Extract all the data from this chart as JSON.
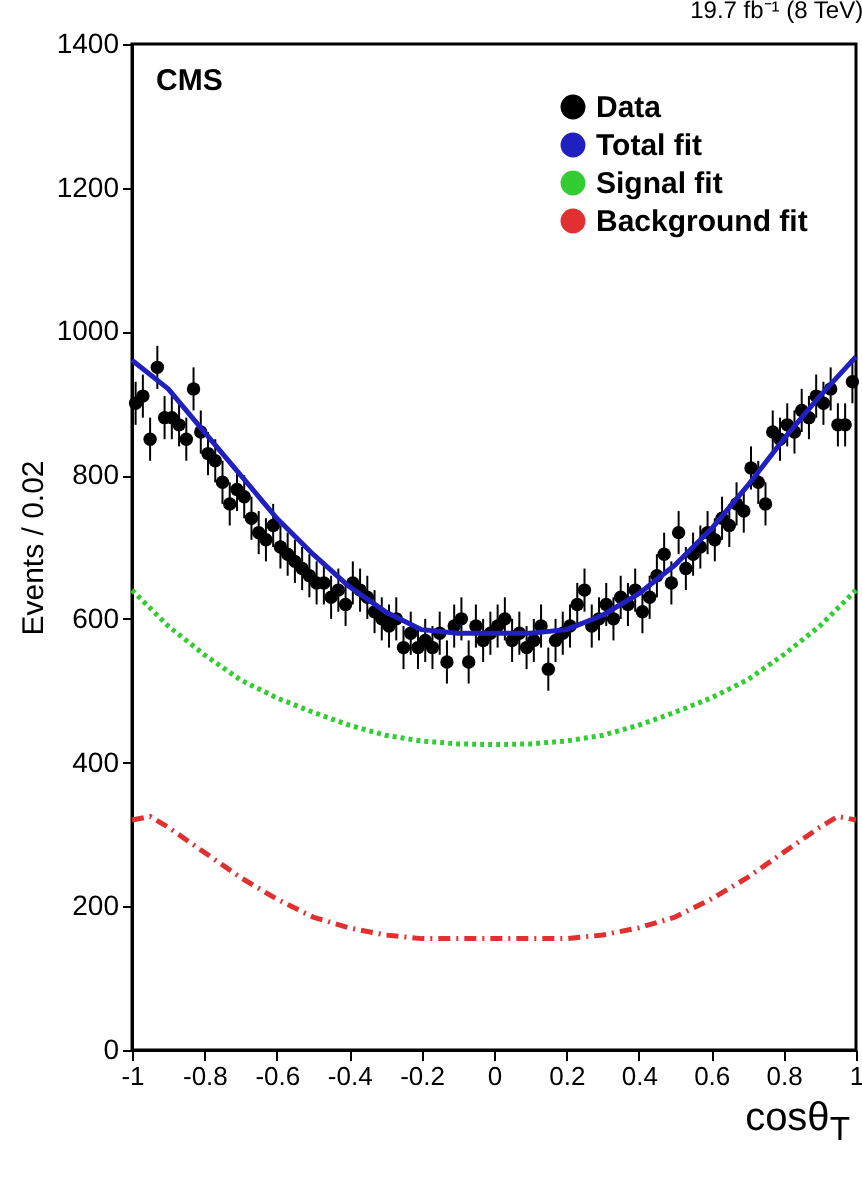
{
  "chart_data": {
    "type": "scatter",
    "title": "19.7 fb⁻¹ (8 TeV)",
    "xlabel": "cosθ$_{T}$",
    "ylabel": "Events / 0.02",
    "annotations": [
      "CMS"
    ],
    "xlim": [
      -1,
      1
    ],
    "xticks": [
      -1,
      -0.8,
      -0.6,
      -0.4,
      -0.2,
      0,
      0.2,
      0.4,
      0.6,
      0.8,
      1
    ],
    "ylim": [
      0,
      1400
    ],
    "yticks": [
      0,
      200,
      400,
      600,
      800,
      1000,
      1200,
      1400
    ],
    "legend": "top right",
    "series": [
      {
        "name": "Data",
        "marker": "circle",
        "color": "#000000",
        "x": [
          -0.99,
          -0.97,
          -0.95,
          -0.93,
          -0.91,
          -0.89,
          -0.87,
          -0.85,
          -0.83,
          -0.81,
          -0.79,
          -0.77,
          -0.75,
          -0.73,
          -0.71,
          -0.69,
          -0.67,
          -0.65,
          -0.63,
          -0.61,
          -0.59,
          -0.57,
          -0.55,
          -0.53,
          -0.51,
          -0.49,
          -0.47,
          -0.45,
          -0.43,
          -0.41,
          -0.39,
          -0.37,
          -0.35,
          -0.33,
          -0.31,
          -0.29,
          -0.27,
          -0.25,
          -0.23,
          -0.21,
          -0.19,
          -0.17,
          -0.15,
          -0.13,
          -0.11,
          -0.09,
          -0.07,
          -0.05,
          -0.03,
          -0.01,
          0.01,
          0.03,
          0.05,
          0.07,
          0.09,
          0.11,
          0.13,
          0.15,
          0.17,
          0.19,
          0.21,
          0.23,
          0.25,
          0.27,
          0.29,
          0.31,
          0.33,
          0.35,
          0.37,
          0.39,
          0.41,
          0.43,
          0.45,
          0.47,
          0.49,
          0.51,
          0.53,
          0.55,
          0.57,
          0.59,
          0.61,
          0.63,
          0.65,
          0.67,
          0.69,
          0.71,
          0.73,
          0.75,
          0.77,
          0.79,
          0.81,
          0.83,
          0.85,
          0.87,
          0.89,
          0.91,
          0.93,
          0.95,
          0.97,
          0.99
        ],
        "values": [
          900,
          910,
          850,
          950,
          880,
          880,
          870,
          850,
          920,
          860,
          830,
          820,
          790,
          760,
          780,
          770,
          740,
          720,
          710,
          730,
          700,
          690,
          680,
          670,
          660,
          650,
          650,
          630,
          640,
          620,
          650,
          640,
          630,
          610,
          600,
          590,
          600,
          560,
          580,
          560,
          570,
          560,
          580,
          540,
          590,
          600,
          540,
          590,
          570,
          580,
          590,
          600,
          570,
          580,
          560,
          570,
          590,
          530,
          570,
          580,
          590,
          620,
          640,
          590,
          600,
          620,
          600,
          630,
          620,
          640,
          610,
          630,
          660,
          690,
          650,
          720,
          670,
          690,
          700,
          720,
          710,
          740,
          730,
          760,
          750,
          810,
          790,
          760,
          860,
          850,
          870,
          860,
          890,
          880,
          910,
          900,
          920,
          870,
          870,
          930
        ],
        "errors": [
          30,
          30,
          30,
          30,
          30,
          30,
          30,
          30,
          30,
          30,
          30,
          30,
          30,
          30,
          30,
          30,
          30,
          30,
          30,
          30,
          30,
          30,
          30,
          30,
          30,
          30,
          30,
          30,
          30,
          30,
          30,
          30,
          30,
          30,
          30,
          30,
          30,
          30,
          30,
          30,
          30,
          30,
          30,
          30,
          30,
          30,
          30,
          30,
          30,
          30,
          30,
          30,
          30,
          30,
          30,
          30,
          30,
          30,
          30,
          30,
          30,
          30,
          30,
          30,
          30,
          30,
          30,
          30,
          30,
          30,
          30,
          30,
          30,
          30,
          30,
          30,
          30,
          30,
          30,
          30,
          30,
          30,
          30,
          30,
          30,
          30,
          30,
          30,
          30,
          30,
          30,
          30,
          30,
          30,
          30,
          30,
          30,
          30,
          30,
          30
        ]
      },
      {
        "name": "Total fit",
        "type": "line",
        "color": "#2020c0",
        "line_style": "solid",
        "x": [
          -1,
          -0.9,
          -0.8,
          -0.7,
          -0.6,
          -0.5,
          -0.4,
          -0.3,
          -0.2,
          -0.1,
          0,
          0.1,
          0.2,
          0.3,
          0.4,
          0.5,
          0.6,
          0.7,
          0.8,
          0.9,
          1
        ],
        "values": [
          960,
          920,
          860,
          800,
          740,
          690,
          645,
          610,
          585,
          580,
          580,
          580,
          585,
          605,
          635,
          675,
          725,
          785,
          850,
          910,
          965
        ]
      },
      {
        "name": "Signal fit",
        "type": "line",
        "color": "#33cc33",
        "line_style": "dotted",
        "x": [
          -1,
          -0.9,
          -0.8,
          -0.7,
          -0.6,
          -0.5,
          -0.4,
          -0.3,
          -0.2,
          -0.1,
          0,
          0.1,
          0.2,
          0.3,
          0.4,
          0.5,
          0.6,
          0.7,
          0.8,
          0.9,
          1
        ],
        "values": [
          640,
          590,
          550,
          515,
          490,
          470,
          452,
          438,
          430,
          426,
          425,
          426,
          430,
          438,
          452,
          470,
          490,
          515,
          550,
          590,
          640
        ]
      },
      {
        "name": "Background fit",
        "type": "line",
        "color": "#e03030",
        "line_style": "dashed",
        "x": [
          -1,
          -0.95,
          -0.9,
          -0.8,
          -0.7,
          -0.6,
          -0.5,
          -0.4,
          -0.3,
          -0.2,
          0,
          0.2,
          0.3,
          0.4,
          0.5,
          0.6,
          0.7,
          0.8,
          0.9,
          0.95,
          1
        ],
        "values": [
          320,
          325,
          310,
          275,
          240,
          210,
          185,
          170,
          160,
          155,
          155,
          155,
          160,
          170,
          185,
          210,
          240,
          275,
          310,
          325,
          320
        ]
      }
    ]
  }
}
